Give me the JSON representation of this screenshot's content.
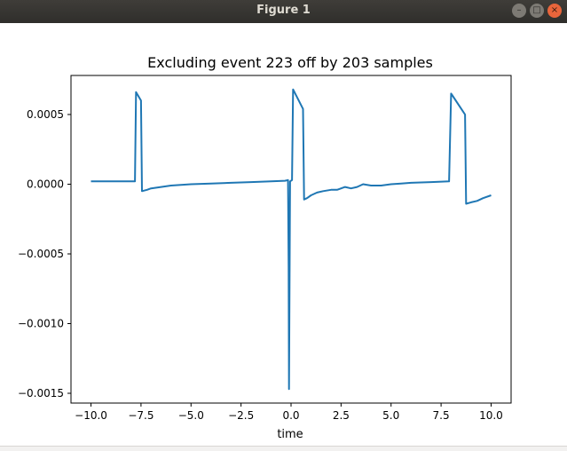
{
  "window": {
    "title": "Figure 1",
    "controls": {
      "minimize_icon": "minimize-icon",
      "maximize_icon": "maximize-icon",
      "close_icon": "close-icon",
      "close_color": "#e9653b"
    }
  },
  "chart_data": {
    "type": "line",
    "title": "Excluding event 223 off by 203 samples",
    "xlabel": "time",
    "ylabel": "",
    "xlim": [
      -11,
      11
    ],
    "ylim": [
      -0.00157,
      0.00078
    ],
    "x_ticks": [
      -10,
      -7.5,
      -5,
      -2.5,
      0,
      2.5,
      5,
      7.5,
      10
    ],
    "x_tick_labels": [
      "−10.0",
      "−7.5",
      "−5.0",
      "−2.5",
      "0.0",
      "2.5",
      "5.0",
      "7.5",
      "10.0"
    ],
    "y_ticks": [
      0.0005,
      0,
      -0.0005,
      -0.001,
      -0.0015
    ],
    "y_tick_labels": [
      "0.0005",
      "0.0000",
      "−0.0005",
      "−0.0010",
      "−0.0015"
    ],
    "grid": false,
    "series_color": "#1f77b4",
    "series": [
      {
        "x": [
          -10,
          -9,
          -8.5,
          -7.8,
          -7.75,
          -7.5,
          -7.45,
          -7.2,
          -7.0,
          -6.5,
          -6.0,
          -5.5,
          -5.0,
          -4.0,
          -3.0,
          -2.0,
          -1.0,
          -0.3,
          -0.15,
          -0.12,
          -0.1,
          -0.05,
          0.05,
          0.1,
          0.6,
          0.65,
          0.8,
          1.0,
          1.3,
          1.6,
          2.0,
          2.3,
          2.7,
          3.0,
          3.3,
          3.6,
          4.0,
          4.5,
          5.0,
          5.5,
          6.0,
          7.0,
          7.9,
          8.0,
          8.05,
          8.7,
          8.75,
          9.0,
          9.3,
          9.6,
          10.0
        ],
        "y": [
          2e-05,
          2e-05,
          2e-05,
          2e-05,
          0.00066,
          0.0006,
          -5e-05,
          -4e-05,
          -3e-05,
          -2e-05,
          -1e-05,
          -5e-06,
          0,
          5e-06,
          1e-05,
          1.5e-05,
          2e-05,
          2.5e-05,
          3e-05,
          -0.0006,
          -0.00147,
          2e-05,
          3e-05,
          0.00068,
          0.00054,
          -0.00011,
          -0.0001,
          -8e-05,
          -6e-05,
          -5e-05,
          -4e-05,
          -4e-05,
          -2e-05,
          -3e-05,
          -2e-05,
          0,
          -1e-05,
          -1e-05,
          0,
          5e-06,
          1e-05,
          1.5e-05,
          2e-05,
          0.00065,
          0.00064,
          0.0005,
          -0.00014,
          -0.00013,
          -0.00012,
          -0.0001,
          -8e-05
        ]
      }
    ]
  }
}
